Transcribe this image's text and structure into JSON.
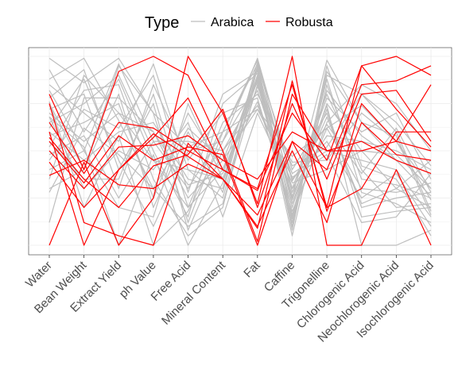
{
  "chart_data": {
    "type": "line",
    "title": "",
    "xlabel": "",
    "ylabel": "",
    "ylim": [
      0,
      1
    ],
    "grid": true,
    "legend": {
      "title": "Type",
      "position": "top",
      "entries": [
        "Arabica",
        "Robusta"
      ]
    },
    "categories": [
      "Water",
      "Bean Weight",
      "Extract Yield",
      "ph Value",
      "Free Acid",
      "Mineral Content",
      "Fat",
      "Caffine",
      "Trigonelline",
      "Chlorogenic Acid",
      "Neochlorogenic Acid",
      "Isochlorogenic Acid"
    ],
    "series": [
      {
        "name": "Arabica",
        "color": "#bebebe",
        "lines": [
          [
            0.99,
            0.86,
            0.99,
            0.7,
            0.52,
            0.6,
            0.72,
            0.47,
            0.62,
            0.74,
            0.55,
            0.3
          ],
          [
            0.93,
            0.6,
            0.88,
            0.45,
            0.2,
            0.4,
            0.93,
            0.3,
            0.8,
            0.4,
            0.2,
            0.22
          ],
          [
            0.88,
            0.99,
            0.66,
            0.3,
            0.1,
            0.22,
            0.85,
            0.2,
            0.75,
            0.5,
            0.3,
            0.45
          ],
          [
            0.85,
            0.7,
            0.55,
            0.96,
            0.4,
            0.35,
            0.9,
            0.1,
            0.9,
            0.8,
            0.6,
            0.18
          ],
          [
            0.82,
            0.5,
            0.96,
            0.55,
            0.3,
            0.6,
            0.98,
            0.35,
            0.55,
            0.25,
            0.38,
            0.1
          ],
          [
            0.78,
            0.93,
            0.4,
            0.75,
            0.08,
            0.5,
            0.82,
            0.25,
            0.98,
            0.65,
            0.45,
            0.38
          ],
          [
            0.75,
            0.4,
            0.8,
            0.2,
            0.6,
            0.28,
            0.95,
            0.4,
            0.7,
            0.2,
            0.25,
            0.28
          ],
          [
            0.72,
            0.8,
            0.3,
            0.85,
            0.45,
            0.7,
            0.78,
            0.15,
            0.65,
            0.85,
            0.75,
            0.5
          ],
          [
            0.7,
            0.55,
            0.7,
            0.6,
            0.25,
            0.45,
            0.88,
            0.05,
            0.85,
            0.35,
            0.32,
            0.25
          ],
          [
            0.68,
            0.3,
            0.5,
            0.4,
            0.65,
            0.15,
            0.7,
            0.3,
            0.58,
            0.55,
            0.5,
            0.4
          ],
          [
            0.65,
            0.75,
            0.9,
            0.5,
            0.15,
            0.75,
            0.91,
            0.22,
            0.72,
            0.15,
            0.18,
            0.2
          ],
          [
            0.62,
            0.88,
            0.45,
            0.1,
            0.5,
            0.55,
            0.86,
            0.38,
            0.5,
            0.45,
            0.4,
            0.15
          ],
          [
            0.6,
            0.45,
            0.6,
            0.65,
            0.35,
            0.3,
            0.97,
            0.28,
            0.78,
            0.6,
            0.7,
            0.35
          ],
          [
            0.58,
            0.65,
            0.75,
            0.25,
            0.7,
            0.4,
            0.76,
            0.18,
            0.62,
            0.3,
            0.28,
            0.33
          ],
          [
            0.55,
            0.35,
            0.35,
            0.8,
            0.2,
            0.65,
            0.8,
            0.44,
            0.45,
            0.7,
            0.55,
            0.24
          ],
          [
            0.52,
            0.82,
            0.85,
            0.35,
            0.05,
            0.2,
            0.94,
            0.12,
            0.88,
            0.28,
            0.22,
            0.12
          ],
          [
            0.48,
            0.58,
            0.25,
            0.55,
            0.55,
            0.5,
            0.74,
            0.33,
            0.4,
            0.5,
            0.48,
            0.3
          ],
          [
            0.45,
            0.72,
            0.62,
            0.9,
            0.28,
            0.8,
            0.92,
            0.08,
            0.95,
            0.42,
            0.35,
            0.05
          ],
          [
            0.4,
            0.5,
            0.2,
            0.15,
            0.75,
            0.35,
            0.84,
            0.42,
            0.52,
            0.8,
            0.65,
            0.42
          ],
          [
            0.35,
            0.9,
            0.7,
            0.45,
            0.4,
            0.25,
            0.89,
            0.26,
            0.68,
            0.22,
            0.3,
            0.2
          ],
          [
            0.3,
            0.4,
            0.95,
            0.7,
            0.12,
            0.6,
            0.96,
            0.16,
            0.82,
            0.58,
            0.45,
            0.26
          ],
          [
            0.28,
            0.62,
            0.48,
            0.3,
            0.62,
            0.45,
            0.72,
            0.36,
            0.48,
            0.12,
            0.15,
            0.38
          ],
          [
            0.12,
            0.78,
            0.78,
            0.6,
            0.32,
            0.38,
            0.87,
            0.14,
            0.92,
            0.65,
            0.58,
            0.16
          ],
          [
            0.76,
            0.2,
            0.58,
            0.0,
            0.18,
            0.55,
            0.99,
            0.34,
            0.64,
            0.38,
            0.62,
            0.28
          ],
          [
            0.68,
            0.52,
            0.0,
            0.48,
            0.0,
            0.33,
            0.9,
            0.24,
            0.74,
            0.0,
            0.0,
            0.08
          ]
        ]
      },
      {
        "name": "Robusta",
        "color": "#ff0000",
        "lines": [
          [
            0.0,
            0.44,
            0.0,
            0.25,
            1.0,
            0.7,
            0.22,
            1.0,
            0.0,
            0.0,
            0.4,
            0.0
          ],
          [
            0.8,
            0.4,
            0.92,
            1.0,
            0.9,
            0.5,
            0.02,
            0.8,
            0.5,
            0.5,
            0.55,
            0.85
          ],
          [
            0.65,
            0.38,
            0.65,
            0.62,
            0.5,
            0.4,
            0.29,
            0.7,
            0.45,
            0.95,
            1.0,
            0.9
          ],
          [
            0.55,
            0.33,
            0.58,
            0.45,
            0.52,
            0.48,
            0.0,
            0.55,
            0.4,
            0.85,
            0.87,
            0.95
          ],
          [
            0.6,
            0.0,
            0.4,
            0.57,
            0.78,
            0.4,
            0.3,
            0.85,
            0.2,
            0.3,
            0.6,
            0.6
          ],
          [
            0.37,
            0.45,
            0.32,
            0.3,
            0.43,
            0.35,
            0.09,
            0.87,
            0.18,
            0.65,
            0.48,
            0.45
          ],
          [
            0.44,
            0.2,
            0.4,
            0.59,
            0.47,
            0.35,
            0.16,
            0.55,
            0.2,
            0.95,
            0.72,
            0.52
          ],
          [
            0.75,
            0.12,
            0.05,
            0.0,
            0.54,
            0.35,
            0.1,
            0.5,
            0.12,
            0.75,
            0.55,
            0.5
          ],
          [
            0.57,
            0.35,
            0.2,
            0.42,
            0.48,
            0.72,
            0.2,
            0.75,
            0.35,
            0.8,
            0.82,
            0.55
          ],
          [
            0.5,
            0.3,
            0.52,
            0.53,
            0.58,
            0.45,
            0.35,
            0.6,
            0.5,
            0.55,
            0.45,
            0.38
          ]
        ]
      }
    ]
  }
}
